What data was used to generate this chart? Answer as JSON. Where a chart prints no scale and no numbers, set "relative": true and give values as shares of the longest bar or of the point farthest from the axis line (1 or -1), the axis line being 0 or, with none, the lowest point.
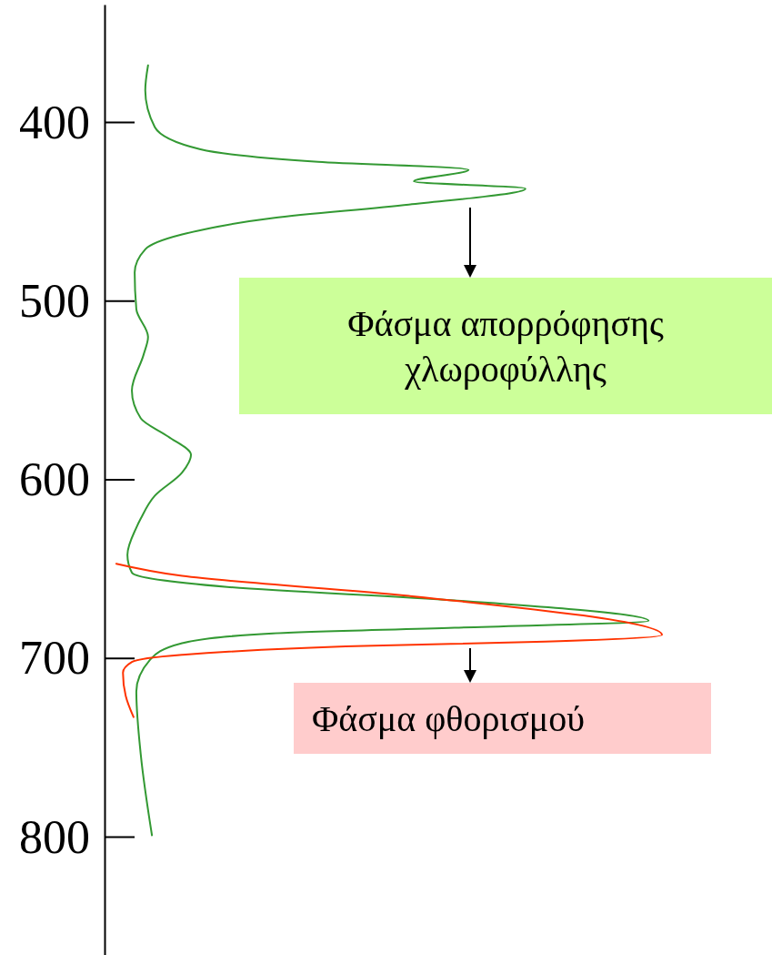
{
  "chart_data": {
    "type": "line",
    "orientation": "horizontal",
    "relative": true,
    "ylim": [
      866,
      334
    ],
    "yticks": [
      400,
      500,
      600,
      700,
      800
    ],
    "series": [
      {
        "name": "Φάσμα απορρόφησης χλωροφύλλης",
        "color": "#339933",
        "x": [
          368,
          382,
          402.5,
          415,
          422,
          426.5,
          433,
          437,
          446,
          453.5,
          462.7,
          471,
          484,
          504.5,
          520,
          530,
          550,
          565.6,
          575.8,
          586,
          596,
          609,
          621.7,
          626.8,
          642,
          652,
          660,
          667.5,
          679,
          682.8,
          686,
          691.5,
          700.6,
          718.5,
          754,
          799
        ],
        "values": [
          0.078,
          0.073,
          0.09,
          0.172,
          0.383,
          0.653,
          0.555,
          0.755,
          0.546,
          0.302,
          0.139,
          0.073,
          0.054,
          0.057,
          0.078,
          0.07,
          0.049,
          0.065,
          0.114,
          0.155,
          0.139,
          0.09,
          0.065,
          0.057,
          0.041,
          0.049,
          0.22,
          0.628,
          0.976,
          0.628,
          0.302,
          0.139,
          0.082,
          0.057,
          0.065,
          0.085
        ]
      },
      {
        "name": "Φάσμα φθορισμού",
        "color": "#ff3300",
        "x": [
          647,
          653.8,
          665,
          686.9,
          690.6,
          693,
          698,
          702,
          708,
          721,
          732.8
        ],
        "values": [
          0.021,
          0.139,
          0.546,
          1,
          0.791,
          0.465,
          0.139,
          0.049,
          0.033,
          0.038,
          0.052
        ]
      }
    ]
  }
}
